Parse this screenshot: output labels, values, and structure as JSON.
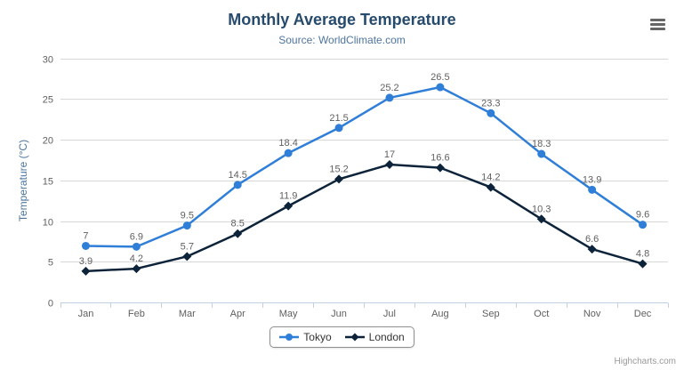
{
  "chart_data": {
    "type": "line",
    "title": "Monthly Average Temperature",
    "subtitle": "Source: WorldClimate.com",
    "xlabel": "",
    "ylabel": "Temperature (°C)",
    "categories": [
      "Jan",
      "Feb",
      "Mar",
      "Apr",
      "May",
      "Jun",
      "Jul",
      "Aug",
      "Sep",
      "Oct",
      "Nov",
      "Dec"
    ],
    "series": [
      {
        "name": "Tokyo",
        "color": "#2f7ed8",
        "marker": "circle",
        "values": [
          7,
          6.9,
          9.5,
          14.5,
          18.4,
          21.5,
          25.2,
          26.5,
          23.3,
          18.3,
          13.9,
          9.6
        ]
      },
      {
        "name": "London",
        "color": "#0d233a",
        "marker": "diamond",
        "values": [
          3.9,
          4.2,
          5.7,
          8.5,
          11.9,
          15.2,
          17,
          16.6,
          14.2,
          10.3,
          6.6,
          4.8
        ]
      }
    ],
    "ylim": [
      0,
      30
    ],
    "ytick_step": 5,
    "grid": true,
    "legend_position": "bottom-center",
    "data_labels": true
  },
  "credits": "Highcharts.com",
  "icons": {
    "context_menu": {
      "name": "hamburger-icon",
      "glyph": "≡"
    }
  },
  "colors": {
    "background": "#ffffff",
    "title": "#274b6d",
    "subtitle": "#4d759e",
    "axis_title": "#4d759e",
    "axis_labels": "#606060",
    "data_labels": "#606060",
    "gridline": "#d8d8d8",
    "axis_line": "#c0d0e0",
    "legend_border": "#909090",
    "legend_text": "#333333",
    "credits_text": "#999999",
    "menu_icon": "#666666"
  }
}
